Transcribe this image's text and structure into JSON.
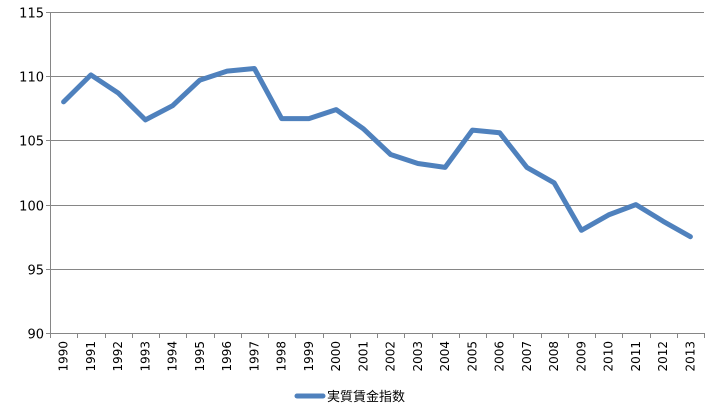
{
  "chart_data": {
    "type": "line",
    "title": "",
    "xlabel": "",
    "ylabel": "",
    "categories": [
      "1990",
      "1991",
      "1992",
      "1993",
      "1994",
      "1995",
      "1996",
      "1997",
      "1998",
      "1999",
      "2000",
      "2001",
      "2002",
      "2003",
      "2004",
      "2005",
      "2006",
      "2007",
      "2008",
      "2009",
      "2010",
      "2011",
      "2012",
      "2013"
    ],
    "y_ticks": [
      "90",
      "95",
      "100",
      "105",
      "110",
      "115"
    ],
    "ylim": [
      90,
      115
    ],
    "grid": true,
    "legend_position": "bottom",
    "series": [
      {
        "name": "実質賃金指数",
        "color": "#4f81bd",
        "values": [
          108.0,
          110.1,
          108.7,
          106.6,
          107.7,
          109.7,
          110.4,
          110.6,
          106.7,
          106.7,
          107.4,
          105.9,
          103.9,
          103.2,
          102.9,
          105.8,
          105.6,
          102.9,
          101.7,
          98.0,
          99.2,
          100.0,
          98.7,
          97.5
        ]
      }
    ]
  }
}
